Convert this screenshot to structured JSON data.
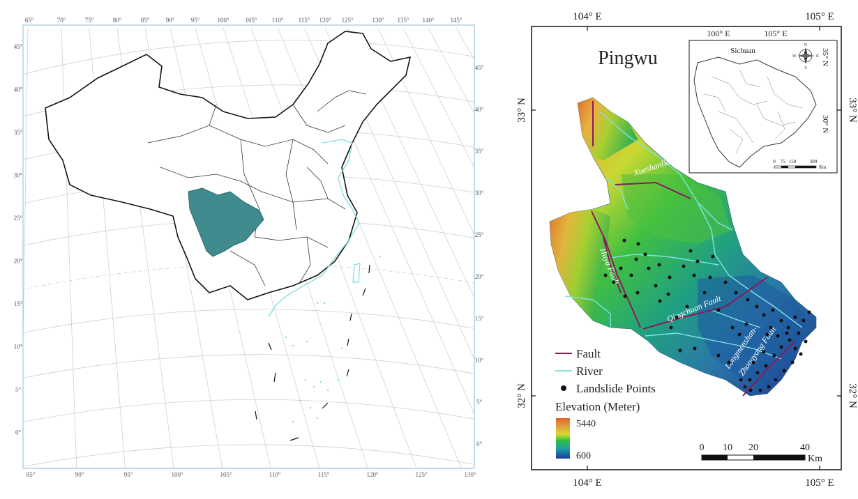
{
  "left_map": {
    "top_longitude_ticks": [
      "65°",
      "70°",
      "75°",
      "80°",
      "85°",
      "90°",
      "95°",
      "100°",
      "105°",
      "110°",
      "115°",
      "120°",
      "125°",
      "130°",
      "135°",
      "140°",
      "145°"
    ],
    "bottom_longitude_ticks": [
      "85°",
      "90°",
      "95°",
      "100°",
      "105°",
      "110°",
      "115°",
      "120°",
      "125°",
      "130°"
    ],
    "left_latitude_ticks": [
      "45°",
      "40°",
      "35°",
      "30°",
      "25°",
      "20°",
      "15°",
      "10°",
      "5°",
      "0°"
    ],
    "right_latitude_ticks": [
      "45°",
      "40°",
      "35°",
      "30°",
      "25°",
      "20°",
      "15°",
      "10°",
      "5°",
      "0°"
    ],
    "highlight_region_color": "#3f8b8e",
    "coastline_color": "#7fdcdc"
  },
  "right_map": {
    "title": "Pingwu",
    "top_lon_labels": [
      "104° E",
      "105° E"
    ],
    "bottom_lon_labels": [
      "104° E",
      "105° E"
    ],
    "left_lat_labels": [
      "33° N",
      "32° N"
    ],
    "right_lat_labels": [
      "33° N",
      "32° N"
    ],
    "inset": {
      "title": "Sichuan",
      "lon_labels": [
        "100° E",
        "105° E"
      ],
      "lat_labels": [
        "35° N",
        "30° N"
      ],
      "scale_labels": [
        "0",
        "75",
        "150",
        "300"
      ],
      "scale_unit": "Km",
      "compass_labels": [
        "N",
        "E",
        "S",
        "W"
      ]
    },
    "fault_labels": [
      "Xueshanliangzi Fault",
      "Huya Fault",
      "Qingchuan Fault",
      "Longmenshan-",
      "Zhongyang Fault"
    ],
    "legend": {
      "fault": "Fault",
      "river": "River",
      "landslide": "Landslide Points",
      "elevation_title": "Elevation (Meter)",
      "elev_max": "5440",
      "elev_min": "600"
    },
    "scale_bar": {
      "labels": [
        "0",
        "10",
        "20",
        "40"
      ],
      "unit": "Km"
    },
    "colors": {
      "fault": "#8b1a5a",
      "river": "#7fe3e3",
      "point": "#111111"
    }
  }
}
